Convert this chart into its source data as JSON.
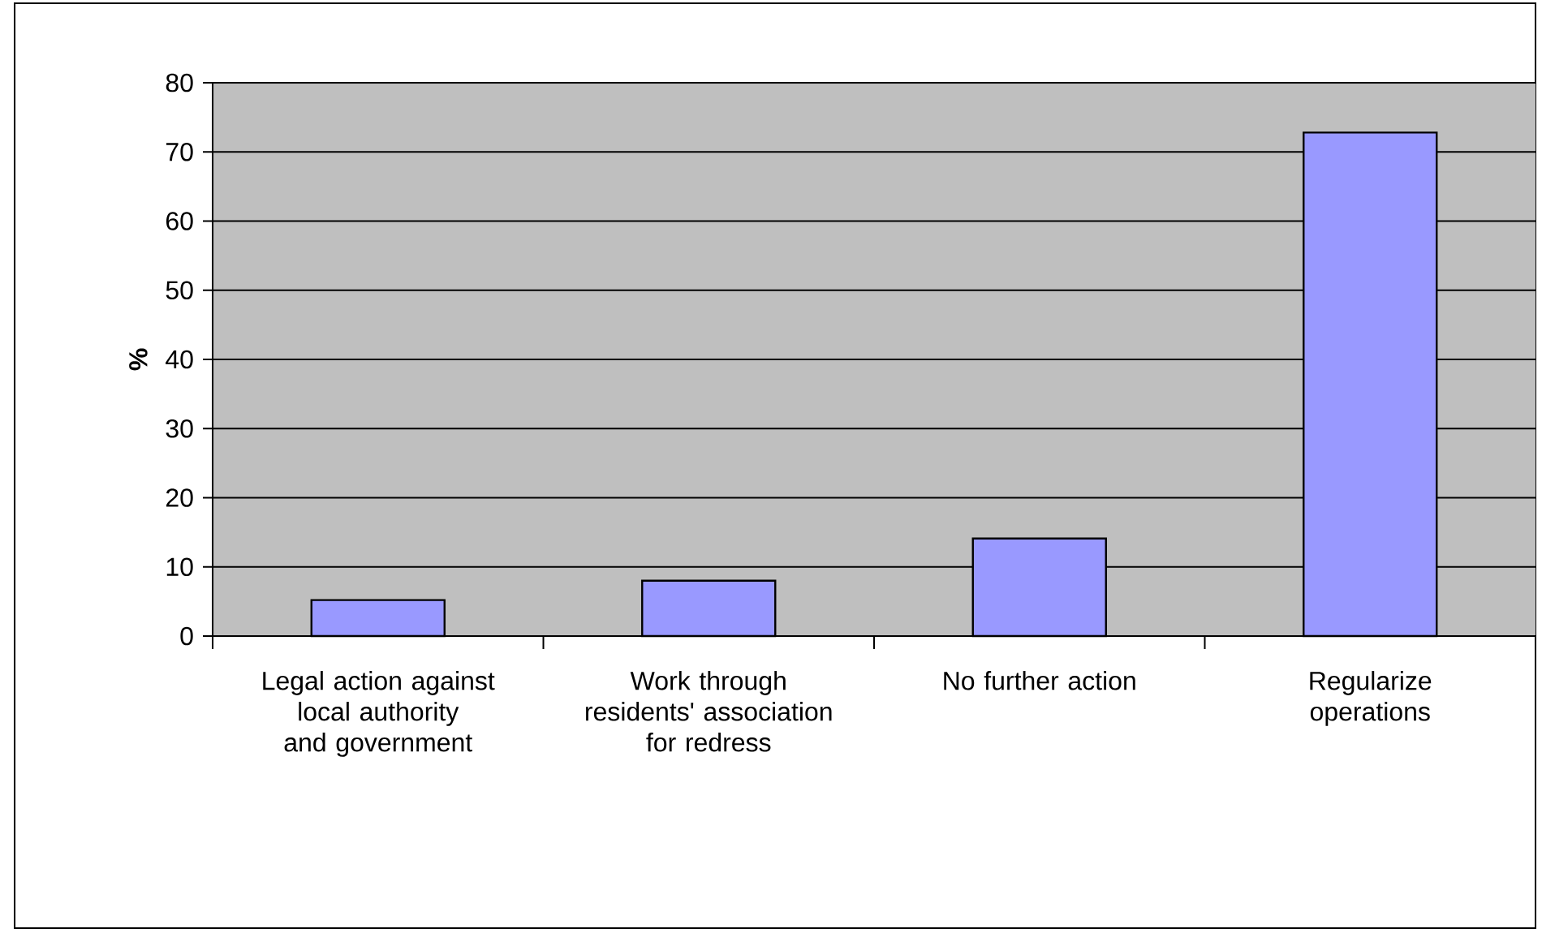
{
  "chart_data": {
    "type": "bar",
    "ylabel": "%",
    "categories": [
      "Legal action against local authority and government",
      "Work through residents' association for redress",
      "No further action",
      "Regularize operations"
    ],
    "values": [
      5.2,
      8,
      14.1,
      72.8
    ],
    "color": "#9999ff",
    "ylim": [
      0,
      80
    ],
    "yticks": [
      0,
      10,
      20,
      30,
      40,
      50,
      60,
      70,
      80
    ],
    "grid": "y"
  }
}
